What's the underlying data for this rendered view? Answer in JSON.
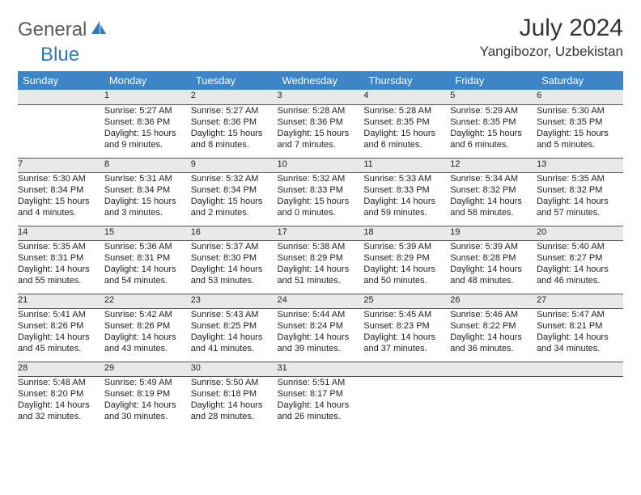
{
  "brand": {
    "part1": "General",
    "part2": "Blue"
  },
  "title": "July 2024",
  "location": "Yangibozor, Uzbekistan",
  "colors": {
    "header_bg": "#3d85c6",
    "header_text": "#ffffff",
    "daynum_bg": "#e9e9e9",
    "cell_border": "#2d5b8a",
    "brand_gray": "#5b5b5b",
    "brand_blue": "#2d79bd"
  },
  "weekdays": [
    "Sunday",
    "Monday",
    "Tuesday",
    "Wednesday",
    "Thursday",
    "Friday",
    "Saturday"
  ],
  "weeks": [
    {
      "nums": [
        "",
        "1",
        "2",
        "3",
        "4",
        "5",
        "6"
      ],
      "details": [
        "",
        "Sunrise: 5:27 AM\nSunset: 8:36 PM\nDaylight: 15 hours and 9 minutes.",
        "Sunrise: 5:27 AM\nSunset: 8:36 PM\nDaylight: 15 hours and 8 minutes.",
        "Sunrise: 5:28 AM\nSunset: 8:36 PM\nDaylight: 15 hours and 7 minutes.",
        "Sunrise: 5:28 AM\nSunset: 8:35 PM\nDaylight: 15 hours and 6 minutes.",
        "Sunrise: 5:29 AM\nSunset: 8:35 PM\nDaylight: 15 hours and 6 minutes.",
        "Sunrise: 5:30 AM\nSunset: 8:35 PM\nDaylight: 15 hours and 5 minutes."
      ]
    },
    {
      "nums": [
        "7",
        "8",
        "9",
        "10",
        "11",
        "12",
        "13"
      ],
      "details": [
        "Sunrise: 5:30 AM\nSunset: 8:34 PM\nDaylight: 15 hours and 4 minutes.",
        "Sunrise: 5:31 AM\nSunset: 8:34 PM\nDaylight: 15 hours and 3 minutes.",
        "Sunrise: 5:32 AM\nSunset: 8:34 PM\nDaylight: 15 hours and 2 minutes.",
        "Sunrise: 5:32 AM\nSunset: 8:33 PM\nDaylight: 15 hours and 0 minutes.",
        "Sunrise: 5:33 AM\nSunset: 8:33 PM\nDaylight: 14 hours and 59 minutes.",
        "Sunrise: 5:34 AM\nSunset: 8:32 PM\nDaylight: 14 hours and 58 minutes.",
        "Sunrise: 5:35 AM\nSunset: 8:32 PM\nDaylight: 14 hours and 57 minutes."
      ]
    },
    {
      "nums": [
        "14",
        "15",
        "16",
        "17",
        "18",
        "19",
        "20"
      ],
      "details": [
        "Sunrise: 5:35 AM\nSunset: 8:31 PM\nDaylight: 14 hours and 55 minutes.",
        "Sunrise: 5:36 AM\nSunset: 8:31 PM\nDaylight: 14 hours and 54 minutes.",
        "Sunrise: 5:37 AM\nSunset: 8:30 PM\nDaylight: 14 hours and 53 minutes.",
        "Sunrise: 5:38 AM\nSunset: 8:29 PM\nDaylight: 14 hours and 51 minutes.",
        "Sunrise: 5:39 AM\nSunset: 8:29 PM\nDaylight: 14 hours and 50 minutes.",
        "Sunrise: 5:39 AM\nSunset: 8:28 PM\nDaylight: 14 hours and 48 minutes.",
        "Sunrise: 5:40 AM\nSunset: 8:27 PM\nDaylight: 14 hours and 46 minutes."
      ]
    },
    {
      "nums": [
        "21",
        "22",
        "23",
        "24",
        "25",
        "26",
        "27"
      ],
      "details": [
        "Sunrise: 5:41 AM\nSunset: 8:26 PM\nDaylight: 14 hours and 45 minutes.",
        "Sunrise: 5:42 AM\nSunset: 8:26 PM\nDaylight: 14 hours and 43 minutes.",
        "Sunrise: 5:43 AM\nSunset: 8:25 PM\nDaylight: 14 hours and 41 minutes.",
        "Sunrise: 5:44 AM\nSunset: 8:24 PM\nDaylight: 14 hours and 39 minutes.",
        "Sunrise: 5:45 AM\nSunset: 8:23 PM\nDaylight: 14 hours and 37 minutes.",
        "Sunrise: 5:46 AM\nSunset: 8:22 PM\nDaylight: 14 hours and 36 minutes.",
        "Sunrise: 5:47 AM\nSunset: 8:21 PM\nDaylight: 14 hours and 34 minutes."
      ]
    },
    {
      "nums": [
        "28",
        "29",
        "30",
        "31",
        "",
        "",
        ""
      ],
      "details": [
        "Sunrise: 5:48 AM\nSunset: 8:20 PM\nDaylight: 14 hours and 32 minutes.",
        "Sunrise: 5:49 AM\nSunset: 8:19 PM\nDaylight: 14 hours and 30 minutes.",
        "Sunrise: 5:50 AM\nSunset: 8:18 PM\nDaylight: 14 hours and 28 minutes.",
        "Sunrise: 5:51 AM\nSunset: 8:17 PM\nDaylight: 14 hours and 26 minutes.",
        "",
        "",
        ""
      ]
    }
  ]
}
